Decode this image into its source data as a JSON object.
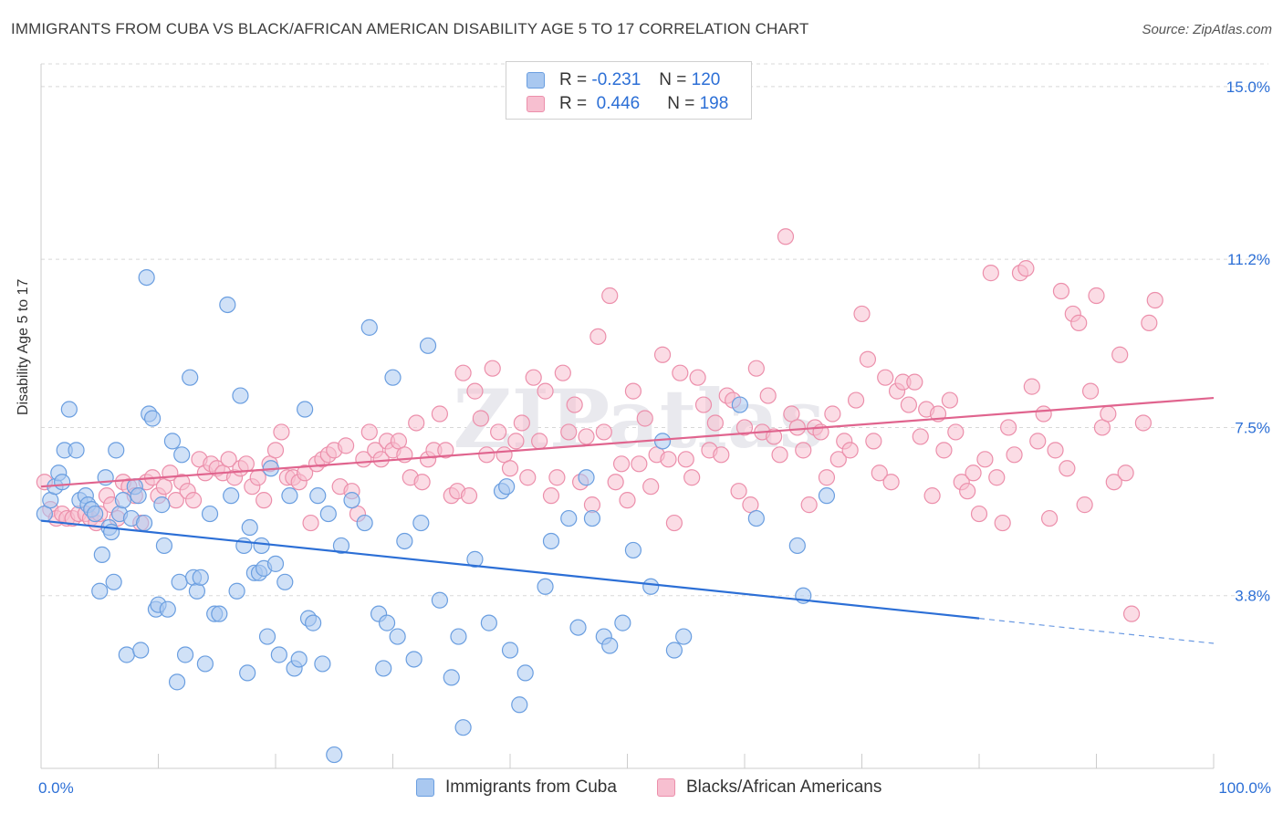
{
  "title": "IMMIGRANTS FROM CUBA VS BLACK/AFRICAN AMERICAN DISABILITY AGE 5 TO 17 CORRELATION CHART",
  "source": "Source: ZipAtlas.com",
  "watermark": "ZIPatlas",
  "legend": {
    "series1": {
      "r_label": "R =",
      "r_value": "-0.231",
      "n_label": "N =",
      "n_value": "120"
    },
    "series2": {
      "r_label": "R =",
      "r_value": "0.446",
      "n_label": "N =",
      "n_value": "198"
    }
  },
  "colors": {
    "blue_fill": "#a9c8f0",
    "blue_stroke": "#6a9ee0",
    "blue_line": "#2c6fd6",
    "pink_fill": "#f7bfd0",
    "pink_stroke": "#ec8fab",
    "pink_line": "#e0648e",
    "grid": "#d8d8d8",
    "axis_text": "#2c6fd6"
  },
  "chart_data": {
    "type": "scatter",
    "title": "IMMIGRANTS FROM CUBA VS BLACK/AFRICAN AMERICAN DISABILITY AGE 5 TO 17 CORRELATION CHART",
    "xlabel": "",
    "ylabel": "Disability Age 5 to 17",
    "xlim": [
      0,
      100
    ],
    "ylim": [
      0,
      15.5
    ],
    "x_tick_labels": [
      "0.0%",
      "100.0%"
    ],
    "y_tick_labels": [
      "3.8%",
      "7.5%",
      "11.2%",
      "15.0%"
    ],
    "y_ticks": [
      3.8,
      7.5,
      11.2,
      15.0
    ],
    "grid": true,
    "legend_position": "top-center",
    "series": [
      {
        "name": "Immigrants from Cuba",
        "color": "#a9c8f0",
        "trend": {
          "x": [
            0,
            80
          ],
          "y": [
            5.45,
            3.3
          ]
        },
        "trend_extension": {
          "x": [
            80,
            100
          ],
          "y": [
            3.3,
            2.75
          ]
        },
        "points": [
          [
            0.3,
            5.6
          ],
          [
            0.8,
            5.9
          ],
          [
            1.2,
            6.2
          ],
          [
            1.5,
            6.5
          ],
          [
            1.8,
            6.3
          ],
          [
            2,
            7
          ],
          [
            2.4,
            7.9
          ],
          [
            3,
            7
          ],
          [
            3.3,
            5.9
          ],
          [
            3.8,
            6.0
          ],
          [
            4,
            5.8
          ],
          [
            4.3,
            5.7
          ],
          [
            4.6,
            5.6
          ],
          [
            5,
            3.9
          ],
          [
            5.2,
            4.7
          ],
          [
            5.5,
            6.4
          ],
          [
            5.8,
            5.3
          ],
          [
            6,
            5.2
          ],
          [
            6.2,
            4.1
          ],
          [
            6.4,
            7.0
          ],
          [
            6.7,
            5.6
          ],
          [
            7,
            5.9
          ],
          [
            7.3,
            2.5
          ],
          [
            7.7,
            5.5
          ],
          [
            8,
            6.2
          ],
          [
            8.3,
            6.0
          ],
          [
            8.5,
            2.6
          ],
          [
            8.8,
            5.4
          ],
          [
            9,
            10.8
          ],
          [
            9.2,
            7.8
          ],
          [
            9.5,
            7.7
          ],
          [
            9.8,
            3.5
          ],
          [
            10,
            3.6
          ],
          [
            10.3,
            5.8
          ],
          [
            10.5,
            4.9
          ],
          [
            10.8,
            3.5
          ],
          [
            11.2,
            7.2
          ],
          [
            11.6,
            1.9
          ],
          [
            11.8,
            4.1
          ],
          [
            12,
            6.9
          ],
          [
            12.3,
            2.5
          ],
          [
            12.7,
            8.6
          ],
          [
            13,
            4.2
          ],
          [
            13.3,
            3.9
          ],
          [
            13.6,
            4.2
          ],
          [
            14,
            2.3
          ],
          [
            14.4,
            5.6
          ],
          [
            14.8,
            3.4
          ],
          [
            15.2,
            3.4
          ],
          [
            15.9,
            10.2
          ],
          [
            16.2,
            6.0
          ],
          [
            16.7,
            3.9
          ],
          [
            17,
            8.2
          ],
          [
            17.3,
            4.9
          ],
          [
            17.6,
            2.1
          ],
          [
            17.8,
            5.3
          ],
          [
            18.2,
            4.3
          ],
          [
            18.6,
            4.3
          ],
          [
            18.8,
            4.9
          ],
          [
            19,
            4.4
          ],
          [
            19.3,
            2.9
          ],
          [
            19.6,
            6.6
          ],
          [
            20,
            4.5
          ],
          [
            20.3,
            2.5
          ],
          [
            20.8,
            4.1
          ],
          [
            21.2,
            6.0
          ],
          [
            21.6,
            2.2
          ],
          [
            22,
            2.4
          ],
          [
            22.5,
            7.9
          ],
          [
            22.8,
            3.3
          ],
          [
            23.2,
            3.2
          ],
          [
            23.6,
            6.0
          ],
          [
            24,
            2.3
          ],
          [
            24.5,
            5.6
          ],
          [
            25,
            0.3
          ],
          [
            25.6,
            4.9
          ],
          [
            26.5,
            5.9
          ],
          [
            27.6,
            5.4
          ],
          [
            28,
            9.7
          ],
          [
            28.8,
            3.4
          ],
          [
            29.2,
            2.2
          ],
          [
            29.5,
            3.2
          ],
          [
            30,
            8.6
          ],
          [
            30.4,
            2.9
          ],
          [
            31,
            5.0
          ],
          [
            31.8,
            2.4
          ],
          [
            32.4,
            5.4
          ],
          [
            33,
            9.3
          ],
          [
            34,
            3.7
          ],
          [
            35,
            2.0
          ],
          [
            35.6,
            2.9
          ],
          [
            36,
            0.9
          ],
          [
            37,
            4.6
          ],
          [
            38.2,
            3.2
          ],
          [
            39.3,
            6.1
          ],
          [
            39.7,
            6.2
          ],
          [
            40,
            2.6
          ],
          [
            40.8,
            1.4
          ],
          [
            41.3,
            2.1
          ],
          [
            43,
            4.0
          ],
          [
            43.5,
            5.0
          ],
          [
            45,
            5.5
          ],
          [
            45.8,
            3.1
          ],
          [
            46.5,
            6.4
          ],
          [
            47,
            5.5
          ],
          [
            48,
            2.9
          ],
          [
            48.5,
            2.7
          ],
          [
            49.6,
            3.2
          ],
          [
            50.5,
            4.8
          ],
          [
            52,
            4.0
          ],
          [
            53,
            7.2
          ],
          [
            54,
            2.6
          ],
          [
            54.8,
            2.9
          ],
          [
            59.6,
            8.0
          ],
          [
            61,
            5.5
          ],
          [
            64.5,
            4.9
          ],
          [
            65,
            3.8
          ],
          [
            67,
            6.0
          ]
        ]
      },
      {
        "name": "Blacks/African Americans",
        "color": "#f7bfd0",
        "trend": {
          "x": [
            0,
            100
          ],
          "y": [
            6.2,
            8.15
          ]
        },
        "points": [
          [
            0.3,
            6.3
          ],
          [
            0.8,
            5.7
          ],
          [
            1.3,
            5.5
          ],
          [
            1.8,
            5.6
          ],
          [
            2.2,
            5.5
          ],
          [
            2.7,
            5.5
          ],
          [
            3.2,
            5.6
          ],
          [
            3.8,
            5.6
          ],
          [
            4.2,
            5.5
          ],
          [
            4.7,
            5.4
          ],
          [
            5,
            5.6
          ],
          [
            5.6,
            6.0
          ],
          [
            6,
            5.8
          ],
          [
            6.5,
            5.5
          ],
          [
            7,
            6.3
          ],
          [
            7.5,
            6.2
          ],
          [
            8,
            6.0
          ],
          [
            8.5,
            5.4
          ],
          [
            9,
            6.3
          ],
          [
            9.5,
            6.4
          ],
          [
            10,
            6.0
          ],
          [
            10.5,
            6.2
          ],
          [
            11,
            6.5
          ],
          [
            11.5,
            5.9
          ],
          [
            12,
            6.3
          ],
          [
            12.5,
            6.1
          ],
          [
            13,
            5.9
          ],
          [
            13.5,
            6.8
          ],
          [
            14,
            6.5
          ],
          [
            14.5,
            6.7
          ],
          [
            15,
            6.6
          ],
          [
            15.5,
            6.5
          ],
          [
            16,
            6.8
          ],
          [
            16.5,
            6.4
          ],
          [
            17,
            6.6
          ],
          [
            17.5,
            6.7
          ],
          [
            18,
            6.2
          ],
          [
            18.5,
            6.4
          ],
          [
            19,
            5.9
          ],
          [
            19.5,
            6.7
          ],
          [
            20,
            7.0
          ],
          [
            20.5,
            7.4
          ],
          [
            21,
            6.4
          ],
          [
            21.5,
            6.4
          ],
          [
            22,
            6.3
          ],
          [
            22.5,
            6.5
          ],
          [
            23,
            5.4
          ],
          [
            23.5,
            6.7
          ],
          [
            24,
            6.8
          ],
          [
            24.5,
            6.9
          ],
          [
            25,
            7.0
          ],
          [
            25.5,
            6.2
          ],
          [
            26,
            7.1
          ],
          [
            26.5,
            6.1
          ],
          [
            27,
            5.6
          ],
          [
            27.5,
            6.8
          ],
          [
            28,
            7.4
          ],
          [
            28.5,
            7.0
          ],
          [
            29,
            6.8
          ],
          [
            29.5,
            7.2
          ],
          [
            30,
            7.0
          ],
          [
            30.5,
            7.2
          ],
          [
            31,
            6.9
          ],
          [
            31.5,
            6.4
          ],
          [
            32,
            7.6
          ],
          [
            32.5,
            6.3
          ],
          [
            33,
            6.8
          ],
          [
            33.5,
            7.0
          ],
          [
            34,
            7.8
          ],
          [
            34.5,
            7.0
          ],
          [
            35,
            6.0
          ],
          [
            35.5,
            6.1
          ],
          [
            36,
            8.7
          ],
          [
            36.5,
            6.0
          ],
          [
            37,
            8.3
          ],
          [
            37.5,
            7.7
          ],
          [
            38,
            6.9
          ],
          [
            38.5,
            8.8
          ],
          [
            39,
            7.4
          ],
          [
            39.5,
            6.9
          ],
          [
            40,
            6.6
          ],
          [
            40.5,
            7.2
          ],
          [
            41,
            7.6
          ],
          [
            41.5,
            6.4
          ],
          [
            42,
            8.6
          ],
          [
            42.5,
            7.2
          ],
          [
            43,
            8.3
          ],
          [
            43.5,
            6.0
          ],
          [
            44,
            6.4
          ],
          [
            44.5,
            8.7
          ],
          [
            45,
            7.4
          ],
          [
            45.5,
            8.0
          ],
          [
            46,
            6.3
          ],
          [
            46.5,
            7.3
          ],
          [
            47,
            5.8
          ],
          [
            47.5,
            9.5
          ],
          [
            48,
            7.4
          ],
          [
            48.5,
            10.4
          ],
          [
            49,
            6.3
          ],
          [
            49.5,
            6.7
          ],
          [
            50,
            5.9
          ],
          [
            50.5,
            8.3
          ],
          [
            51,
            6.7
          ],
          [
            51.5,
            7.7
          ],
          [
            52,
            6.2
          ],
          [
            52.5,
            6.9
          ],
          [
            53,
            9.1
          ],
          [
            53.5,
            6.8
          ],
          [
            54,
            5.4
          ],
          [
            54.5,
            8.7
          ],
          [
            55,
            6.8
          ],
          [
            55.5,
            6.4
          ],
          [
            56,
            8.6
          ],
          [
            56.5,
            8.0
          ],
          [
            57,
            7.0
          ],
          [
            57.5,
            7.6
          ],
          [
            58,
            6.9
          ],
          [
            58.5,
            8.2
          ],
          [
            59,
            8.1
          ],
          [
            59.5,
            6.1
          ],
          [
            60,
            7.5
          ],
          [
            60.5,
            5.8
          ],
          [
            61,
            8.8
          ],
          [
            61.5,
            7.4
          ],
          [
            62,
            8.2
          ],
          [
            62.5,
            7.3
          ],
          [
            63,
            6.9
          ],
          [
            63.5,
            11.7
          ],
          [
            64,
            7.8
          ],
          [
            64.5,
            7.5
          ],
          [
            65,
            7.0
          ],
          [
            65.5,
            5.8
          ],
          [
            66,
            7.5
          ],
          [
            66.5,
            7.4
          ],
          [
            67,
            6.4
          ],
          [
            67.5,
            7.8
          ],
          [
            68,
            6.8
          ],
          [
            68.5,
            7.2
          ],
          [
            69,
            7.0
          ],
          [
            69.5,
            8.1
          ],
          [
            70,
            10.0
          ],
          [
            70.5,
            9.0
          ],
          [
            71,
            7.2
          ],
          [
            71.5,
            6.5
          ],
          [
            72,
            8.6
          ],
          [
            72.5,
            6.3
          ],
          [
            73,
            8.3
          ],
          [
            73.5,
            8.5
          ],
          [
            74,
            8.0
          ],
          [
            74.5,
            8.5
          ],
          [
            75,
            7.3
          ],
          [
            75.5,
            7.9
          ],
          [
            76,
            6.0
          ],
          [
            76.5,
            7.8
          ],
          [
            77,
            7.0
          ],
          [
            77.5,
            8.1
          ],
          [
            78,
            7.4
          ],
          [
            78.5,
            6.3
          ],
          [
            79,
            6.1
          ],
          [
            79.5,
            6.5
          ],
          [
            80,
            5.6
          ],
          [
            80.5,
            6.8
          ],
          [
            81,
            10.9
          ],
          [
            81.5,
            6.4
          ],
          [
            82,
            5.4
          ],
          [
            82.5,
            7.5
          ],
          [
            83,
            6.9
          ],
          [
            83.5,
            10.9
          ],
          [
            84,
            11.0
          ],
          [
            84.5,
            8.4
          ],
          [
            85,
            7.2
          ],
          [
            85.5,
            7.8
          ],
          [
            86,
            5.5
          ],
          [
            86.5,
            7.0
          ],
          [
            87,
            10.5
          ],
          [
            87.5,
            6.6
          ],
          [
            88,
            10.0
          ],
          [
            88.5,
            9.8
          ],
          [
            89,
            5.8
          ],
          [
            89.5,
            8.3
          ],
          [
            90,
            10.4
          ],
          [
            90.5,
            7.5
          ],
          [
            91,
            7.8
          ],
          [
            91.5,
            6.3
          ],
          [
            92,
            9.1
          ],
          [
            92.5,
            6.5
          ],
          [
            93,
            3.4
          ],
          [
            94,
            7.6
          ],
          [
            94.5,
            9.8
          ],
          [
            95,
            10.3
          ]
        ]
      }
    ]
  }
}
